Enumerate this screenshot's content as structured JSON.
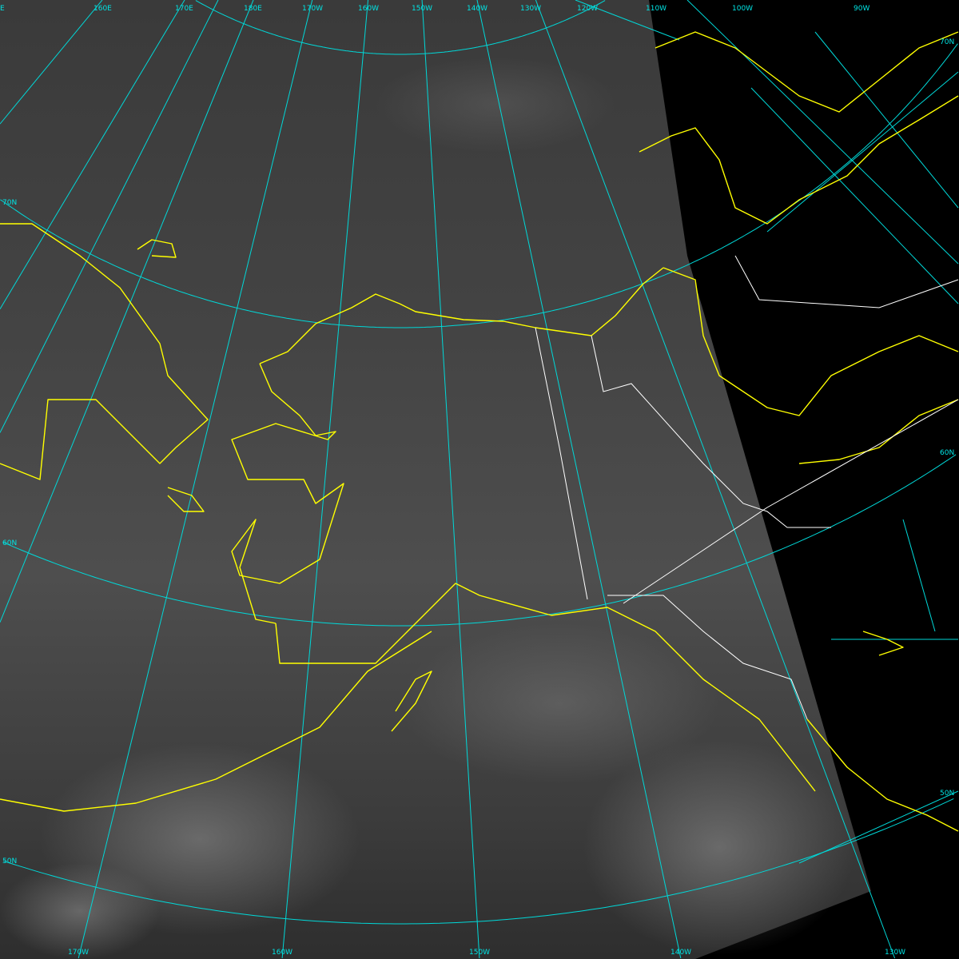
{
  "map": {
    "type": "satellite imagery (polar stereographic projection)",
    "region": "Alaska",
    "colors": {
      "graticule": "#00d8d8",
      "coastline": "#ffff00",
      "borders": "#ffffff",
      "no_data": "#000000"
    },
    "labels": {
      "top": [
        "E",
        "160E",
        "170E",
        "180E",
        "170W",
        "160W",
        "150W",
        "140W",
        "130W",
        "120W",
        "110W",
        "100W",
        "90W"
      ],
      "left": [
        "70N",
        "60N",
        "50N"
      ],
      "right": [
        "70N",
        "60N",
        "50N"
      ],
      "bottom": [
        "170W",
        "160W",
        "150W",
        "140W",
        "130W"
      ]
    }
  }
}
